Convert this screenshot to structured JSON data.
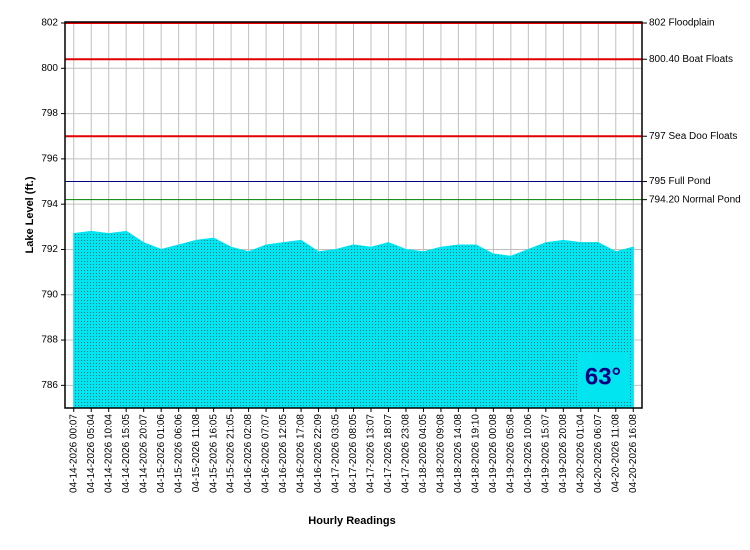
{
  "chart_data": {
    "type": "area",
    "y_label": "Lake Level (ft.)",
    "x_label": "Hourly Readings",
    "badge": "63°",
    "categories": [
      "04-14-2026 00:07",
      "04-14-2026 05:04",
      "04-14-2026 10:04",
      "04-14-2026 15:05",
      "04-14-2026 20:07",
      "04-15-2026 01:06",
      "04-15-2026 06:06",
      "04-15-2026 11:08",
      "04-15-2026 16:05",
      "04-15-2026 21:05",
      "04-16-2026 02:08",
      "04-16-2026 07:07",
      "04-16-2026 12:05",
      "04-16-2026 17:08",
      "04-16-2026 22:09",
      "04-17-2026 03:05",
      "04-17-2026 08:05",
      "04-17-2026 13:07",
      "04-17-2026 18:07",
      "04-17-2026 23:08",
      "04-18-2026 04:05",
      "04-18-2026 09:08",
      "04-18-2026 14:08",
      "04-18-2026 19:10",
      "04-19-2026 00:08",
      "04-19-2026 05:08",
      "04-19-2026 10:06",
      "04-19-2026 15:07",
      "04-19-2026 20:08",
      "04-20-2026 01:04",
      "04-20-2026 06:07",
      "04-20-2026 11:08",
      "04-20-2026 16:08"
    ],
    "values": [
      792.7,
      792.8,
      792.7,
      792.8,
      792.3,
      792.0,
      792.2,
      792.4,
      792.5,
      792.1,
      791.9,
      792.2,
      792.3,
      792.4,
      791.9,
      792.0,
      792.2,
      792.1,
      792.3,
      792.0,
      791.9,
      792.1,
      792.2,
      792.2,
      791.8,
      791.7,
      792.0,
      792.3,
      792.4,
      792.3,
      792.3,
      791.9,
      792.1
    ],
    "color": "#00e5f0",
    "ylim": [
      785,
      802
    ],
    "yticks": [
      786,
      788,
      790,
      792,
      794,
      796,
      798,
      800,
      802
    ],
    "grid": true,
    "reference_lines": [
      {
        "value": 802,
        "label": "802 Floodplain",
        "color": "#e00000"
      },
      {
        "value": 800.4,
        "label": "800.40 Boat Floats",
        "color": "#e00000"
      },
      {
        "value": 797,
        "label": "797 Sea Doo Floats",
        "color": "#e00000"
      },
      {
        "value": 795,
        "label": "795 Full Pond",
        "color": "#000080"
      },
      {
        "value": 794.2,
        "label": "794.20 Normal Pond",
        "color": "#008000"
      }
    ]
  }
}
